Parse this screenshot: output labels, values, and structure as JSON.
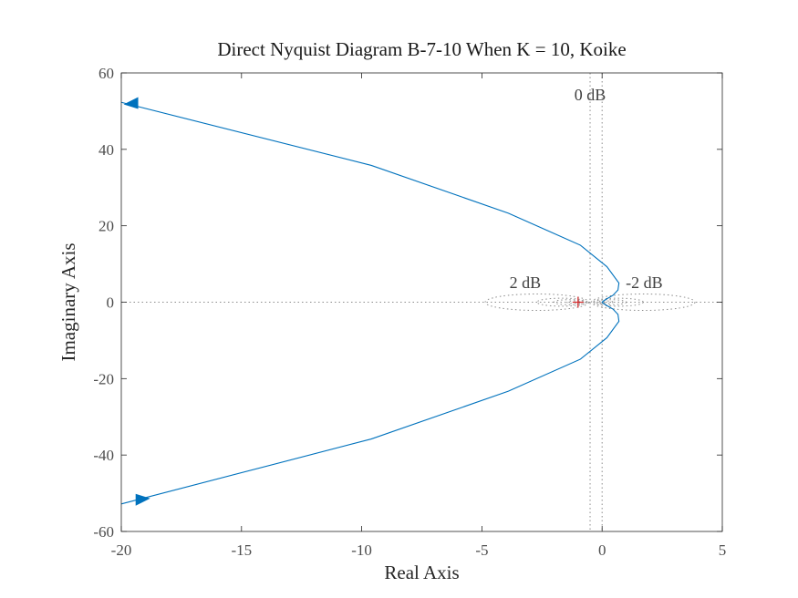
{
  "chart_data": {
    "type": "line",
    "title": "Direct Nyquist Diagram B-7-10 When K = 10, Koike",
    "xlabel": "Real Axis",
    "ylabel": "Imaginary Axis",
    "xlim": [
      -20,
      5
    ],
    "ylim": [
      -60,
      60
    ],
    "xticks": [
      -20,
      -15,
      -10,
      -5,
      0,
      5
    ],
    "xtick_labels": [
      "-20",
      "-15",
      "-10",
      "-5",
      "0",
      "5"
    ],
    "yticks": [
      -60,
      -40,
      -20,
      0,
      20,
      40,
      60
    ],
    "ytick_labels": [
      "-60",
      "-40",
      "-20",
      "0",
      "20",
      "40",
      "60"
    ],
    "grid_labels": [
      "0 dB",
      "2 dB",
      "-2 dB"
    ],
    "critical_point": [
      -1,
      0
    ],
    "series": [
      {
        "color": "#0072BD",
        "x": [
          -20,
          -9.6,
          -3.9,
          -0.9,
          0.2,
          0.7,
          0.66,
          0.45,
          0.2,
          0.05,
          0.0,
          0.05,
          0.2,
          0.45,
          0.66,
          0.7,
          0.2,
          -0.9,
          -3.9,
          -9.6,
          -20
        ],
        "y": [
          52.3,
          35.8,
          23.3,
          14.9,
          9.3,
          5.0,
          3.2,
          1.8,
          0.9,
          0.3,
          0.0,
          -0.3,
          -0.9,
          -1.8,
          -3.2,
          -5.0,
          -9.3,
          -14.9,
          -23.3,
          -35.8,
          -52.8
        ]
      }
    ],
    "arrows": [
      {
        "x": -19.6,
        "y": 52.0,
        "direction": "left"
      },
      {
        "x": -19.1,
        "y": -51.6,
        "direction": "right"
      }
    ],
    "colors": {
      "curve": "#0072BD",
      "grid": "#8c8c8c",
      "critical_marker": "#d62728",
      "axes": "#262626"
    },
    "grid": "dotted M-circles"
  }
}
